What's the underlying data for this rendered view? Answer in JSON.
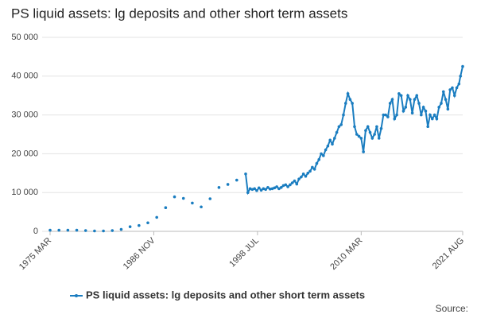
{
  "chart_data": {
    "type": "line",
    "title": "PS liquid assets: lg deposits and other short term assets",
    "source": "Source:",
    "xlim": [
      "1975-03",
      "2021-08"
    ],
    "xticks": [
      {
        "value": "1975-03",
        "label": "1975 MAR"
      },
      {
        "value": "1986-11",
        "label": "1986 NOV"
      },
      {
        "value": "1998-07",
        "label": "1998 JUL"
      },
      {
        "value": "2010-03",
        "label": "2010 MAR"
      },
      {
        "value": "2021-08",
        "label": "2021 AUG"
      }
    ],
    "ylim": [
      0,
      50000
    ],
    "yticks": [
      0,
      {
        "value": 10000,
        "label": "10 000"
      },
      {
        "value": 20000,
        "label": "20 000"
      },
      {
        "value": 30000,
        "label": "30 000"
      },
      {
        "value": 40000,
        "label": "40 000"
      },
      {
        "value": 50000,
        "label": "50 000"
      }
    ],
    "grid": true,
    "legend": "bottom",
    "series": [
      {
        "name": "PS liquid assets: lg deposits and other short term assets",
        "color": "#1a7dc0",
        "x": [
          "1975-03",
          "1976-03",
          "1977-03",
          "1978-03",
          "1979-03",
          "1980-03",
          "1981-03",
          "1982-03",
          "1983-03",
          "1984-03",
          "1985-03",
          "1986-03",
          "1987-03",
          "1988-03",
          "1989-03",
          "1990-03",
          "1991-03",
          "1992-03",
          "1993-03",
          "1994-03",
          "1995-03",
          "1996-03",
          "1997-03",
          "1997-06",
          "1997-09",
          "1997-12",
          "1998-03",
          "1998-06",
          "1998-09",
          "1998-12",
          "1999-03",
          "1999-06",
          "1999-09",
          "1999-12",
          "2000-03",
          "2000-06",
          "2000-09",
          "2000-12",
          "2001-03",
          "2001-06",
          "2001-09",
          "2001-12",
          "2002-03",
          "2002-06",
          "2002-09",
          "2002-12",
          "2003-03",
          "2003-06",
          "2003-09",
          "2003-12",
          "2004-03",
          "2004-06",
          "2004-09",
          "2004-12",
          "2005-03",
          "2005-06",
          "2005-09",
          "2005-12",
          "2006-03",
          "2006-06",
          "2006-09",
          "2006-12",
          "2007-03",
          "2007-06",
          "2007-09",
          "2007-12",
          "2008-03",
          "2008-06",
          "2008-09",
          "2008-12",
          "2009-03",
          "2009-06",
          "2009-09",
          "2009-12",
          "2010-03",
          "2010-06",
          "2010-09",
          "2010-12",
          "2011-03",
          "2011-06",
          "2011-09",
          "2011-12",
          "2012-03",
          "2012-06",
          "2012-09",
          "2012-12",
          "2013-03",
          "2013-06",
          "2013-09",
          "2013-12",
          "2014-03",
          "2014-06",
          "2014-09",
          "2014-12",
          "2015-03",
          "2015-06",
          "2015-09",
          "2015-12",
          "2016-03",
          "2016-06",
          "2016-09",
          "2016-12",
          "2017-03",
          "2017-06",
          "2017-09",
          "2017-12",
          "2018-03",
          "2018-06",
          "2018-09",
          "2018-12",
          "2019-03",
          "2019-06",
          "2019-09",
          "2019-12",
          "2020-03",
          "2020-06",
          "2020-09",
          "2020-12",
          "2021-03",
          "2021-05",
          "2021-08"
        ],
        "values": [
          300,
          300,
          300,
          300,
          200,
          100,
          100,
          200,
          500,
          1200,
          1500,
          2200,
          3600,
          6100,
          8900,
          8500,
          7300,
          6300,
          8400,
          11300,
          12100,
          13200,
          14800,
          10000,
          11000,
          10800,
          11000,
          10500,
          11200,
          10600,
          11000,
          10800,
          11300,
          10900,
          11000,
          11200,
          11500,
          11000,
          11300,
          11800,
          12000,
          11500,
          12000,
          12500,
          13000,
          12200,
          13500,
          14000,
          14800,
          14200,
          15000,
          15500,
          16500,
          16000,
          17500,
          18500,
          20000,
          19500,
          21000,
          22000,
          23500,
          22500,
          24000,
          25500,
          27000,
          27500,
          30000,
          33000,
          35500,
          34000,
          33000,
          27000,
          25000,
          24500,
          24000,
          20500,
          26000,
          27000,
          25500,
          24000,
          25000,
          27000,
          24000,
          26500,
          30000,
          30000,
          29500,
          33000,
          34000,
          29000,
          30000,
          35500,
          35000,
          31000,
          32000,
          35000,
          34000,
          30500,
          34000,
          35000,
          33000,
          30000,
          32000,
          31000,
          27000,
          30000,
          29000,
          30000,
          29000,
          32000,
          33000,
          36000,
          34000,
          31500,
          36500,
          37000,
          35000,
          37000,
          38000,
          40000,
          42500
        ]
      }
    ]
  }
}
